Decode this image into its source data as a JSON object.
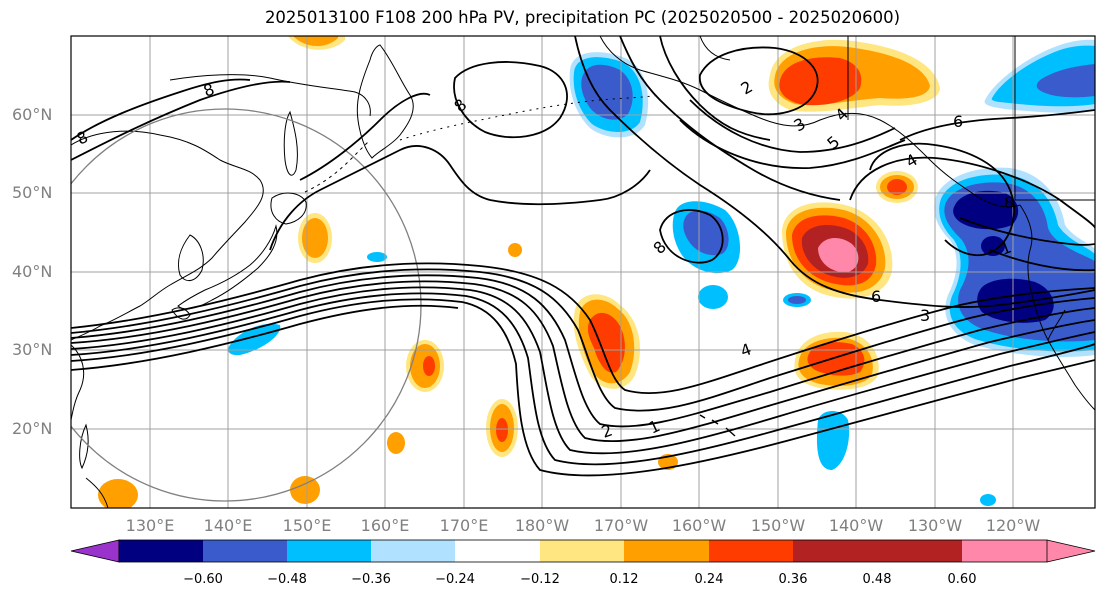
{
  "title": "2025013100 F108 200 hPa PV, precipitation PC (2025020500 - 2025020600)",
  "lat_labels": [
    "60°N",
    "50°N",
    "40°N",
    "30°N",
    "20°N"
  ],
  "lon_labels": [
    "130°E",
    "140°E",
    "150°E",
    "160°E",
    "170°E",
    "180°W",
    "170°W",
    "160°W",
    "150°W",
    "140°W",
    "130°W",
    "120°W"
  ],
  "contour_labels": [
    "8",
    "8",
    "8",
    "2",
    "3",
    "4",
    "5",
    "6",
    "4",
    "8",
    "1",
    "8",
    "6",
    "3",
    "4",
    "2",
    "1"
  ],
  "colorbar": {
    "ticks": [
      "−0.60",
      "−0.48",
      "−0.36",
      "−0.24",
      "−0.12",
      "0.12",
      "0.24",
      "0.36",
      "0.48",
      "0.60"
    ],
    "colors": [
      "#9933cc",
      "#000080",
      "#3a5bcc",
      "#00bfff",
      "#b0e2ff",
      "#ffffff",
      "#ffe680",
      "#ff9f00",
      "#ff3c00",
      "#b22222",
      "#ff88aa"
    ]
  },
  "colors": {
    "grid": "#a0a0a0",
    "coast": "#000000",
    "contour": "#000000",
    "ring": "#808080"
  }
}
